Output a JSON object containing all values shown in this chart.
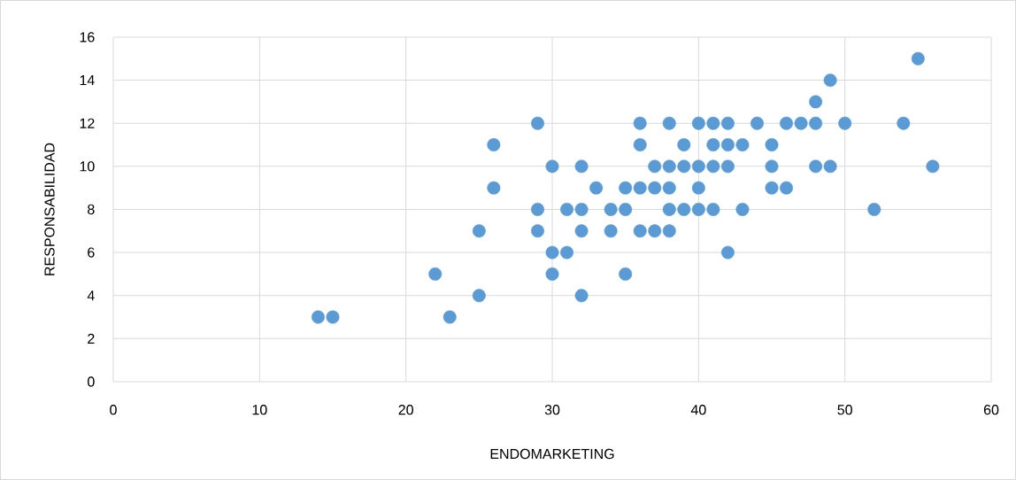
{
  "chart_data": {
    "type": "scatter",
    "xlabel": "ENDOMARKETING",
    "ylabel": "RESPONSABILIDAD",
    "x": [
      14,
      15,
      22,
      23,
      25,
      25,
      26,
      26,
      29,
      29,
      29,
      30,
      30,
      30,
      31,
      31,
      32,
      32,
      32,
      32,
      33,
      34,
      34,
      35,
      35,
      35,
      36,
      36,
      36,
      36,
      37,
      37,
      37,
      38,
      38,
      38,
      38,
      38,
      39,
      39,
      39,
      40,
      40,
      40,
      40,
      41,
      41,
      41,
      41,
      42,
      42,
      42,
      42,
      43,
      43,
      44,
      45,
      45,
      45,
      46,
      46,
      47,
      48,
      48,
      48,
      49,
      49,
      50,
      52,
      54,
      55,
      56
    ],
    "values": [
      3,
      3,
      5,
      3,
      4,
      7,
      11,
      9,
      12,
      8,
      7,
      10,
      6,
      5,
      8,
      6,
      10,
      8,
      7,
      4,
      9,
      8,
      7,
      9,
      8,
      5,
      12,
      11,
      9,
      7,
      10,
      9,
      7,
      12,
      10,
      9,
      8,
      7,
      11,
      10,
      8,
      12,
      10,
      9,
      8,
      12,
      11,
      10,
      8,
      12,
      11,
      10,
      6,
      11,
      8,
      12,
      11,
      10,
      9,
      12,
      9,
      12,
      13,
      12,
      10,
      14,
      10,
      12,
      8,
      12,
      15,
      10
    ],
    "color": "#5b9bd5",
    "grid": true,
    "xlim": [
      0,
      60
    ],
    "ylim": [
      0,
      16
    ],
    "xticks": [
      0,
      10,
      20,
      30,
      40,
      50,
      60
    ],
    "yticks": [
      0,
      2,
      4,
      6,
      8,
      10,
      12,
      14,
      16
    ]
  }
}
